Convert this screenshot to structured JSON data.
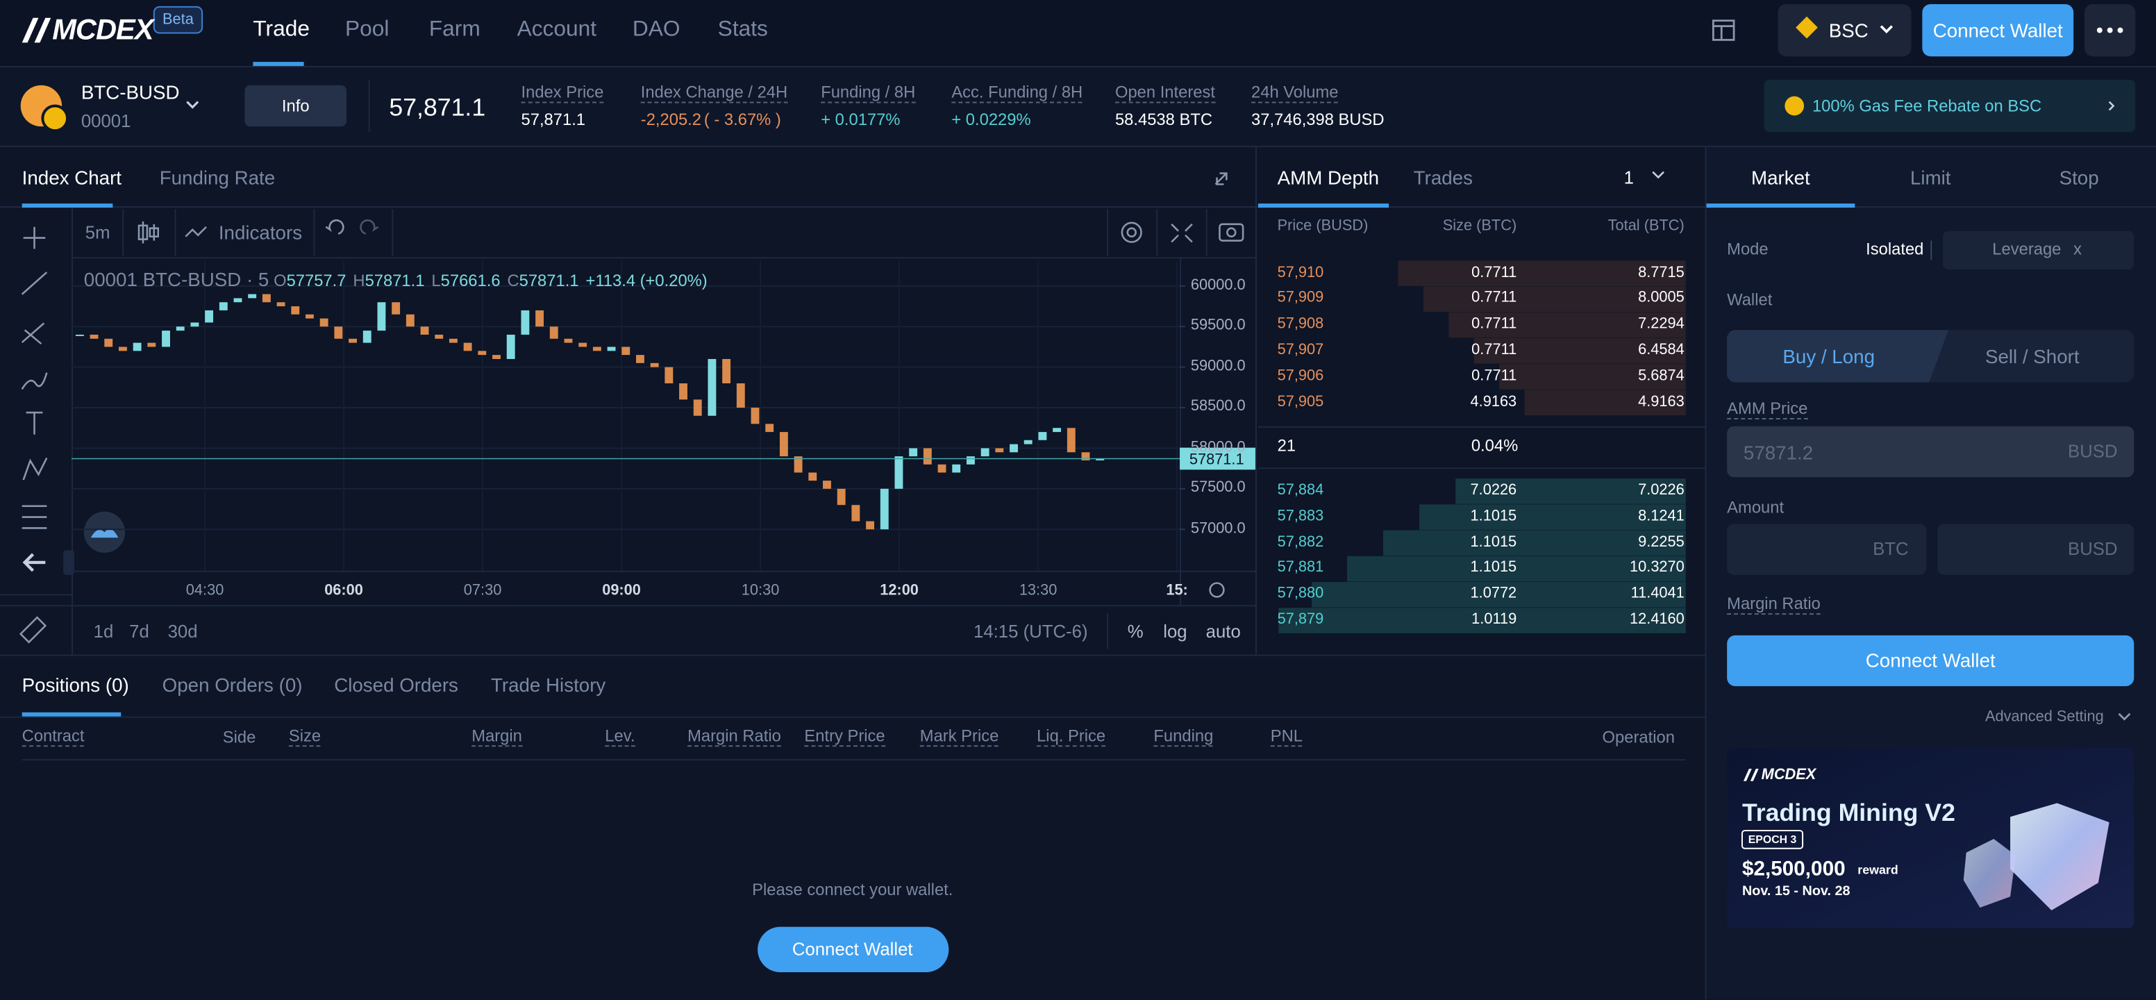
{
  "nav": {
    "logo": "MCDEX",
    "badge": "Beta",
    "links": [
      "Trade",
      "Pool",
      "Farm",
      "Account",
      "DAO",
      "Stats"
    ],
    "network": "BSC",
    "connect": "Connect Wallet"
  },
  "ticker": {
    "pair": "BTC-BUSD",
    "id": "00001",
    "info": "Info",
    "price": "57,871.1",
    "stats": [
      {
        "label": "Index Price",
        "value": "57,871.1"
      },
      {
        "label": "Index Change / 24H",
        "value": "-2,205.2",
        "extra": "( - 3.67% )"
      },
      {
        "label": "Funding / 8H",
        "value": "+ 0.0177%"
      },
      {
        "label": "Acc. Funding / 8H",
        "value": "+ 0.0229%"
      },
      {
        "label": "Open Interest",
        "value": "58.4538 BTC"
      },
      {
        "label": "24h Volume",
        "value": "37,746,398 BUSD"
      }
    ],
    "rebate": "100% Gas Fee Rebate on BSC"
  },
  "chart": {
    "tabs": [
      "Index Chart",
      "Funding Rate"
    ],
    "interval": "5m",
    "indicators": "Indicators",
    "legend": "00001 BTC-BUSD · 5",
    "ohlc": [
      {
        "key": "O",
        "value": "57757.7"
      },
      {
        "key": "H",
        "value": "57871.1"
      },
      {
        "key": "L",
        "value": "57661.6"
      },
      {
        "key": "C",
        "value": "57871.1"
      }
    ],
    "change": "+113.4 (+0.20%)",
    "close": [
      59400,
      59350,
      59250,
      59200,
      59300,
      59250,
      59450,
      59500,
      59550,
      59700,
      59800,
      59850,
      59900,
      59800,
      59750,
      59650,
      59600,
      59500,
      59350,
      59300,
      59450,
      59800,
      59650,
      59500,
      59400,
      59350,
      59300,
      59200,
      59150,
      59100,
      59400,
      59700,
      59500,
      59350,
      59300,
      59250,
      59200,
      59250,
      59150,
      59050,
      59000,
      58800,
      58600,
      58400,
      59100,
      58800,
      58500,
      58300,
      58200,
      57900,
      57700,
      57600,
      57500,
      57300,
      57100,
      57000,
      57500,
      57900,
      58000,
      57800,
      57700,
      57800,
      57900,
      58000,
      57950,
      58050,
      58100,
      58200,
      58250,
      57950,
      57850,
      57871.1
    ],
    "ylim": [
      56490,
      60305
    ],
    "yticks": [
      {
        "value": 60000,
        "label": "60000.0"
      },
      {
        "value": 59500,
        "label": "59500.0"
      },
      {
        "value": 59000,
        "label": "59000.0"
      },
      {
        "value": 58500,
        "label": "58500.0"
      },
      {
        "value": 58000,
        "label": "58000.0"
      },
      {
        "value": 57500,
        "label": "57500.0"
      },
      {
        "value": 57000,
        "label": "57000.0"
      }
    ],
    "last": 57871.1,
    "xticks": [
      "04:30",
      "06:00",
      "07:30",
      "09:00",
      "10:30",
      "12:00",
      "13:30",
      "15:"
    ],
    "ranges": [
      "1d",
      "7d",
      "30d"
    ],
    "time": "14:15 (UTC-6)",
    "options": [
      "%",
      "log",
      "auto"
    ]
  },
  "orderbook": {
    "tabs": [
      "AMM Depth",
      "Trades"
    ],
    "step": "1",
    "headers": [
      "Price (BUSD)",
      "Size (BTC)",
      "Total (BTC)"
    ],
    "asks": [
      [
        "57,910",
        "0.7711",
        "8.7715"
      ],
      [
        "57,909",
        "0.7711",
        "8.0005"
      ],
      [
        "57,908",
        "0.7711",
        "7.2294"
      ],
      [
        "57,907",
        "0.7711",
        "6.4584"
      ],
      [
        "57,906",
        "0.7711",
        "5.6874"
      ],
      [
        "57,905",
        "4.9163",
        "4.9163"
      ]
    ],
    "spread": "21",
    "spread_pct": "0.04%",
    "bids": [
      [
        "57,884",
        "7.0226",
        "7.0226"
      ],
      [
        "57,883",
        "1.1015",
        "8.1241"
      ],
      [
        "57,882",
        "1.1015",
        "9.2255"
      ],
      [
        "57,881",
        "1.1015",
        "10.3270"
      ],
      [
        "57,880",
        "1.0772",
        "11.4041"
      ],
      [
        "57,879",
        "1.0119",
        "12.4160"
      ]
    ]
  },
  "trade": {
    "tabs": [
      "Market",
      "Limit",
      "Stop"
    ],
    "mode": "Mode",
    "isolated": "Isolated",
    "leverage": "Leverage",
    "x": "x",
    "wallet": "Wallet",
    "buy": "Buy / Long",
    "sell": "Sell / Short",
    "amm_price": "AMM Price",
    "amm_placeholder": "57871.2",
    "busd": "BUSD",
    "amount": "Amount",
    "btc": "BTC",
    "margin_ratio": "Margin Ratio",
    "connect": "Connect Wallet",
    "advanced": "Advanced Setting",
    "banner": {
      "logo": "MCDEX",
      "title": "Trading Mining V2",
      "epoch": "EPOCH 3",
      "amount": "$2,500,000",
      "reward": "reward",
      "dates": "Nov. 15 - Nov. 28"
    }
  },
  "positions": {
    "tabs": [
      "Positions (0)",
      "Open Orders (0)",
      "Closed Orders",
      "Trade History"
    ],
    "columns": [
      "Contract",
      "Side",
      "Size",
      "Margin",
      "Lev.",
      "Margin Ratio",
      "Entry Price",
      "Mark Price",
      "Liq. Price",
      "Funding",
      "PNL",
      "Operation"
    ],
    "empty": "Please connect your wallet.",
    "connect": "Connect Wallet"
  }
}
